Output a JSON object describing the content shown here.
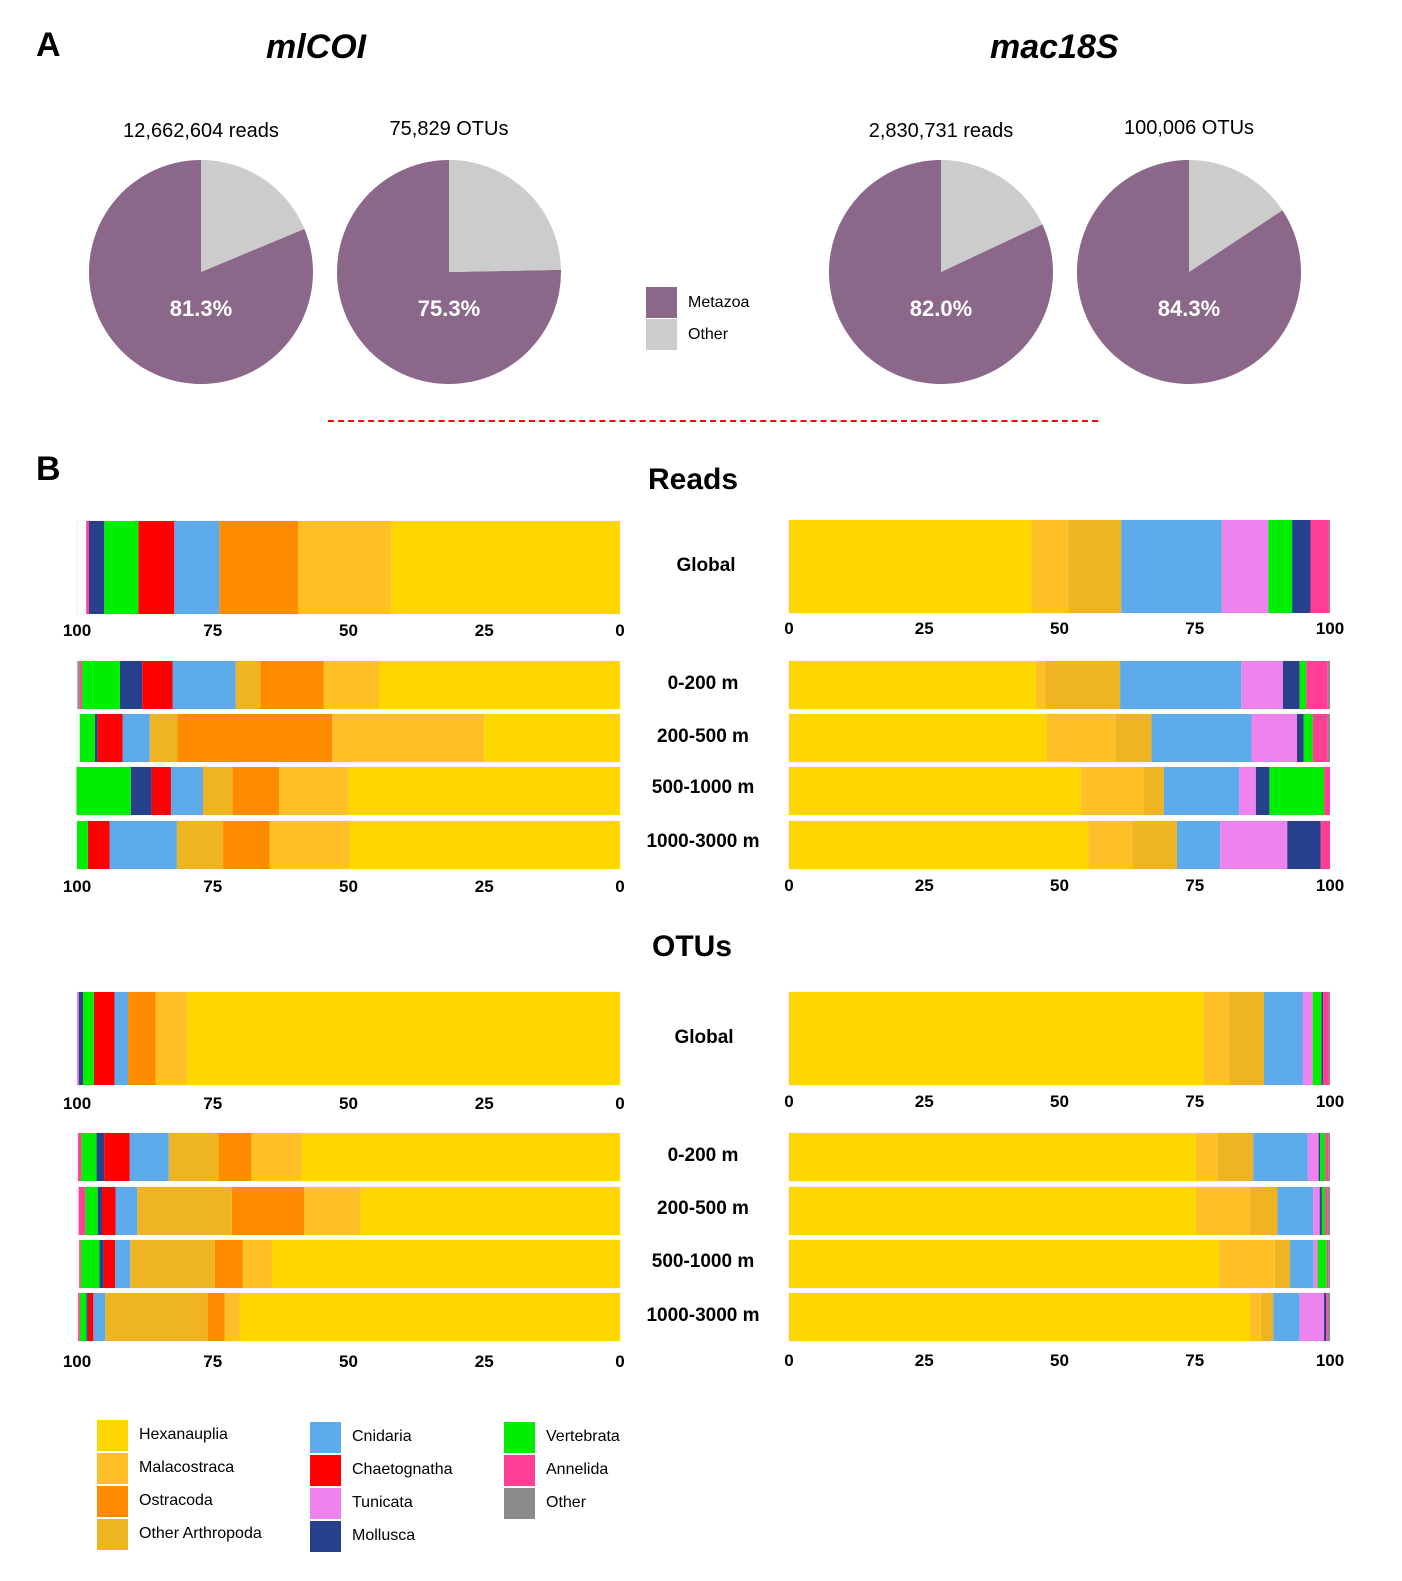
{
  "panels": {
    "A": "A",
    "B": "B"
  },
  "markers": {
    "left": "mlCOI",
    "right": "mac18S"
  },
  "sections": {
    "reads": "Reads",
    "otus": "OTUs"
  },
  "colors": {
    "Hexanauplia": "#FFD700",
    "Malacostraca": "#FFBF27",
    "Ostracoda": "#FF8C00",
    "Other Arthropoda": "#EEB422",
    "Cnidaria": "#5DABEB",
    "Chaetognatha": "#FF0000",
    "Tunicata": "#EE82EE",
    "Mollusca": "#27408B",
    "Vertebrata": "#00EE00",
    "Annelida": "#FF3E96",
    "Other": "#8B8B8B",
    "Metazoa": "#8B6789",
    "NonMetazoa": "#CCCCCC",
    "divider": "#FF0000"
  },
  "pie_legend": [
    {
      "label": "Metazoa",
      "key": "Metazoa"
    },
    {
      "label": "Other",
      "key": "NonMetazoa"
    }
  ],
  "legend": [
    [
      "Hexanauplia",
      "Malacostraca",
      "Ostracoda",
      "Other Arthropoda"
    ],
    [
      "Cnidaria",
      "Chaetognatha",
      "Tunicata",
      "Mollusca"
    ],
    [
      "Vertebrata",
      "Annelida",
      "Other"
    ]
  ],
  "row_labels": [
    "Global",
    "0-200 m",
    "200-500 m",
    "500-1000 m",
    "1000-3000 m"
  ],
  "chart_data": [
    {
      "type": "pie",
      "id": "mlCOI-reads",
      "title": "12,662,604 reads",
      "slices": [
        {
          "label": "Metazoa",
          "value": 81.3
        },
        {
          "label": "Other",
          "value": 18.7
        }
      ],
      "data_label": "81.3%"
    },
    {
      "type": "pie",
      "id": "mlCOI-otus",
      "title": "75,829 OTUs",
      "slices": [
        {
          "label": "Metazoa",
          "value": 75.3
        },
        {
          "label": "Other",
          "value": 24.7
        }
      ],
      "data_label": "75.3%"
    },
    {
      "type": "pie",
      "id": "mac18S-reads",
      "title": "2,830,731 reads",
      "slices": [
        {
          "label": "Metazoa",
          "value": 82.0
        },
        {
          "label": "Other",
          "value": 18.0
        }
      ],
      "data_label": "82.0%"
    },
    {
      "type": "pie",
      "id": "mac18S-otus",
      "title": "100,006 OTUs",
      "slices": [
        {
          "label": "Metazoa",
          "value": 84.3
        },
        {
          "label": "Other",
          "value": 15.7
        }
      ],
      "data_label": "84.3%"
    },
    {
      "type": "bar",
      "stacked": true,
      "orientation": "horizontal",
      "id": "mlCOI-reads-global",
      "marker": "mlCOI",
      "metric": "Reads",
      "direction": "reversed",
      "xlim": [
        100,
        0
      ],
      "xticks": [
        "100",
        "75",
        "50",
        "25",
        "0"
      ],
      "categories": [
        "Global"
      ],
      "series": [
        {
          "name": "Hexanauplia",
          "values": [
            42.2
          ]
        },
        {
          "name": "Malacostraca",
          "values": [
            17.1
          ]
        },
        {
          "name": "Ostracoda",
          "values": [
            14.5
          ]
        },
        {
          "name": "Cnidaria",
          "values": [
            8.3
          ]
        },
        {
          "name": "Chaetognatha",
          "values": [
            6.6
          ]
        },
        {
          "name": "Vertebrata",
          "values": [
            6.3
          ]
        },
        {
          "name": "Mollusca",
          "values": [
            2.8
          ]
        },
        {
          "name": "Annelida",
          "values": [
            0.5
          ]
        }
      ]
    },
    {
      "type": "bar",
      "stacked": true,
      "orientation": "horizontal",
      "id": "mlCOI-reads-depth",
      "marker": "mlCOI",
      "metric": "Reads",
      "direction": "reversed",
      "xlim": [
        100,
        0
      ],
      "xticks": [
        "100",
        "75",
        "50",
        "25",
        "0"
      ],
      "categories": [
        "0-200 m",
        "200-500 m",
        "500-1000 m",
        "1000-3000 m"
      ],
      "series": [
        {
          "name": "Hexanauplia",
          "values": [
            44.3,
            25.0,
            50.0,
            49.8
          ]
        },
        {
          "name": "Malacostraca",
          "values": [
            10.3,
            28.0,
            12.8,
            14.7
          ]
        },
        {
          "name": "Ostracoda",
          "values": [
            11.6,
            28.5,
            8.6,
            8.6
          ]
        },
        {
          "name": "Other Arthropoda",
          "values": [
            4.6,
            5.1,
            5.4,
            8.5
          ]
        },
        {
          "name": "Cnidaria",
          "values": [
            11.6,
            5.0,
            5.9,
            12.4
          ]
        },
        {
          "name": "Chaetognatha",
          "values": [
            5.6,
            4.6,
            3.6,
            4.0
          ]
        },
        {
          "name": "Mollusca",
          "values": [
            4.1,
            0.5,
            3.8,
            0
          ]
        },
        {
          "name": "Vertebrata",
          "values": [
            7.0,
            2.8,
            10.0,
            2.0
          ]
        },
        {
          "name": "Annelida",
          "values": [
            0.4,
            0,
            0,
            0
          ]
        },
        {
          "name": "Other",
          "values": [
            0.4,
            0,
            0,
            0
          ]
        }
      ]
    },
    {
      "type": "bar",
      "stacked": true,
      "orientation": "horizontal",
      "id": "mac18S-reads-global",
      "marker": "mac18S",
      "metric": "Reads",
      "xlim": [
        0,
        100
      ],
      "xticks": [
        "0",
        "25",
        "50",
        "75",
        "100"
      ],
      "categories": [
        "Global"
      ],
      "series": [
        {
          "name": "Hexanauplia",
          "values": [
            44.8
          ]
        },
        {
          "name": "Malacostraca",
          "values": [
            6.8
          ]
        },
        {
          "name": "Other Arthropoda",
          "values": [
            9.8
          ]
        },
        {
          "name": "Cnidaria",
          "values": [
            18.6
          ]
        },
        {
          "name": "Tunicata",
          "values": [
            8.6
          ]
        },
        {
          "name": "Vertebrata",
          "values": [
            4.4
          ]
        },
        {
          "name": "Mollusca",
          "values": [
            3.4
          ]
        },
        {
          "name": "Annelida",
          "values": [
            3.4
          ]
        },
        {
          "name": "Other",
          "values": [
            0.2
          ]
        }
      ]
    },
    {
      "type": "bar",
      "stacked": true,
      "orientation": "horizontal",
      "id": "mac18S-reads-depth",
      "marker": "mac18S",
      "metric": "Reads",
      "xlim": [
        0,
        100
      ],
      "xticks": [
        "0",
        "25",
        "50",
        "75",
        "100"
      ],
      "categories": [
        "0-200 m",
        "200-500 m",
        "500-1000 m",
        "1000-3000 m"
      ],
      "series": [
        {
          "name": "Hexanauplia",
          "values": [
            45.6,
            47.6,
            54.0,
            55.3
          ]
        },
        {
          "name": "Malacostraca",
          "values": [
            1.8,
            12.8,
            11.5,
            8.2
          ]
        },
        {
          "name": "Other Arthropoda",
          "values": [
            13.8,
            6.6,
            3.8,
            8.2
          ]
        },
        {
          "name": "Cnidaria",
          "values": [
            22.4,
            18.5,
            13.9,
            8.0
          ]
        },
        {
          "name": "Tunicata",
          "values": [
            7.7,
            8.4,
            3.1,
            12.4
          ]
        },
        {
          "name": "Mollusca",
          "values": [
            3.1,
            1.2,
            2.5,
            6.2
          ]
        },
        {
          "name": "Vertebrata",
          "values": [
            1.2,
            1.7,
            10.1,
            0
          ]
        },
        {
          "name": "Annelida",
          "values": [
            4.0,
            2.8,
            1.1,
            1.7
          ]
        },
        {
          "name": "Other",
          "values": [
            0.4,
            0.4,
            0,
            0
          ]
        }
      ]
    },
    {
      "type": "bar",
      "stacked": true,
      "orientation": "horizontal",
      "id": "mlCOI-otus-global",
      "marker": "mlCOI",
      "metric": "OTUs",
      "direction": "reversed",
      "xlim": [
        100,
        0
      ],
      "xticks": [
        "100",
        "75",
        "50",
        "25",
        "0"
      ],
      "categories": [
        "Global"
      ],
      "series": [
        {
          "name": "Hexanauplia",
          "values": [
            79.7
          ]
        },
        {
          "name": "Malacostraca",
          "values": [
            5.8
          ]
        },
        {
          "name": "Ostracoda",
          "values": [
            5.1
          ]
        },
        {
          "name": "Cnidaria",
          "values": [
            2.5
          ]
        },
        {
          "name": "Chaetognatha",
          "values": [
            3.8
          ]
        },
        {
          "name": "Vertebrata",
          "values": [
            2.0
          ]
        },
        {
          "name": "Mollusca",
          "values": [
            0.8
          ]
        },
        {
          "name": "Tunicata",
          "values": [
            0.3
          ]
        }
      ]
    },
    {
      "type": "bar",
      "stacked": true,
      "orientation": "horizontal",
      "id": "mlCOI-otus-depth",
      "marker": "mlCOI",
      "metric": "OTUs",
      "direction": "reversed",
      "xlim": [
        100,
        0
      ],
      "xticks": [
        "100",
        "75",
        "50",
        "25",
        "0"
      ],
      "categories": [
        "0-200 m",
        "200-500 m",
        "500-1000 m",
        "1000-3000 m"
      ],
      "series": [
        {
          "name": "Hexanauplia",
          "values": [
            58.6,
            47.8,
            64.1,
            70.0
          ]
        },
        {
          "name": "Malacostraca",
          "values": [
            9.3,
            10.4,
            5.4,
            2.8
          ]
        },
        {
          "name": "Ostracoda",
          "values": [
            6.1,
            13.3,
            5.1,
            3.2
          ]
        },
        {
          "name": "Other Arthropoda",
          "values": [
            9.1,
            17.4,
            15.6,
            18.8
          ]
        },
        {
          "name": "Cnidaria",
          "values": [
            7.2,
            4.0,
            2.8,
            2.2
          ]
        },
        {
          "name": "Chaetognatha",
          "values": [
            4.7,
            2.5,
            2.1,
            1.0
          ]
        },
        {
          "name": "Mollusca",
          "values": [
            1.4,
            0.8,
            0.8,
            0.3
          ]
        },
        {
          "name": "Vertebrata",
          "values": [
            2.8,
            2.3,
            3.4,
            1.2
          ]
        },
        {
          "name": "Annelida",
          "values": [
            0.6,
            1.2,
            0.3,
            0.3
          ]
        }
      ]
    },
    {
      "type": "bar",
      "stacked": true,
      "orientation": "horizontal",
      "id": "mac18S-otus-global",
      "marker": "mac18S",
      "metric": "OTUs",
      "xlim": [
        0,
        100
      ],
      "xticks": [
        "0",
        "25",
        "50",
        "75",
        "100"
      ],
      "categories": [
        "Global"
      ],
      "series": [
        {
          "name": "Hexanauplia",
          "values": [
            76.6
          ]
        },
        {
          "name": "Malacostraca",
          "values": [
            4.8
          ]
        },
        {
          "name": "Other Arthropoda",
          "values": [
            6.4
          ]
        },
        {
          "name": "Cnidaria",
          "values": [
            7.2
          ]
        },
        {
          "name": "Tunicata",
          "values": [
            1.8
          ]
        },
        {
          "name": "Vertebrata",
          "values": [
            1.6
          ]
        },
        {
          "name": "Mollusca",
          "values": [
            0.3
          ]
        },
        {
          "name": "Annelida",
          "values": [
            1.1
          ]
        },
        {
          "name": "Other",
          "values": [
            0.2
          ]
        }
      ]
    },
    {
      "type": "bar",
      "stacked": true,
      "orientation": "horizontal",
      "id": "mac18S-otus-depth",
      "marker": "mac18S",
      "metric": "OTUs",
      "xlim": [
        0,
        100
      ],
      "xticks": [
        "0",
        "25",
        "50",
        "75",
        "100"
      ],
      "categories": [
        "0-200 m",
        "200-500 m",
        "500-1000 m",
        "1000-3000 m"
      ],
      "series": [
        {
          "name": "Hexanauplia",
          "values": [
            75.2,
            75.2,
            79.5,
            85.2
          ]
        },
        {
          "name": "Malacostraca",
          "values": [
            4.1,
            10.1,
            10.3,
            2.0
          ]
        },
        {
          "name": "Other Arthropoda",
          "values": [
            6.5,
            5.0,
            2.8,
            2.3
          ]
        },
        {
          "name": "Cnidaria",
          "values": [
            10.1,
            6.6,
            4.4,
            4.9
          ]
        },
        {
          "name": "Tunicata",
          "values": [
            2.0,
            1.2,
            0.7,
            4.5
          ]
        },
        {
          "name": "Mollusca",
          "values": [
            0.3,
            0.4,
            0,
            0.4
          ]
        },
        {
          "name": "Vertebrata",
          "values": [
            0.9,
            0.6,
            1.7,
            0
          ]
        },
        {
          "name": "Annelida",
          "values": [
            0.6,
            0.5,
            0.3,
            0.3
          ]
        },
        {
          "name": "Other",
          "values": [
            0.3,
            0.4,
            0.3,
            0.4
          ]
        }
      ]
    }
  ]
}
